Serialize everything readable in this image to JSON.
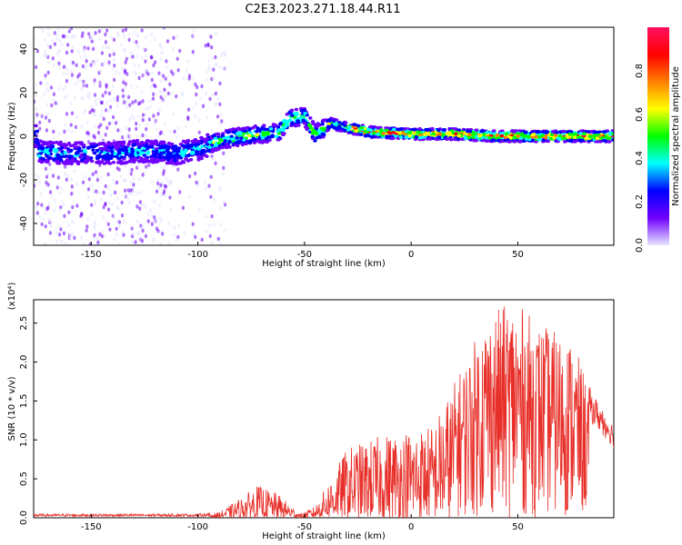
{
  "title": "C2E3.2023.271.18.44.R11",
  "chart_data": [
    {
      "type": "heatmap",
      "xlabel": "Height of straight line (km)",
      "ylabel": "Frequency (Hz)",
      "xlim": [
        -177,
        95
      ],
      "ylim": [
        -50,
        50
      ],
      "xticks": [
        -150,
        -100,
        -50,
        0,
        50
      ],
      "yticks": [
        -40,
        -20,
        0,
        20,
        40
      ],
      "colorbar": {
        "label": "Normalized spectral amplitude",
        "ticks": [
          "0.0",
          "0.2",
          "0.4",
          "0.6",
          "0.8"
        ],
        "range": [
          0,
          1
        ],
        "colormap": [
          "#e6e6ff",
          "#7000ff",
          "#0000ff",
          "#00ffff",
          "#00ff00",
          "#ffff00",
          "#ff8000",
          "#ff0000",
          "#ff1060"
        ]
      },
      "ridge": [
        {
          "x": -175,
          "y": -7
        },
        {
          "x": -160,
          "y": -8
        },
        {
          "x": -150,
          "y": -7
        },
        {
          "x": -140,
          "y": -8
        },
        {
          "x": -130,
          "y": -7
        },
        {
          "x": -120,
          "y": -7
        },
        {
          "x": -110,
          "y": -8
        },
        {
          "x": -100,
          "y": -6
        },
        {
          "x": -90,
          "y": -2
        },
        {
          "x": -80,
          "y": 0
        },
        {
          "x": -70,
          "y": 1
        },
        {
          "x": -62,
          "y": 2
        },
        {
          "x": -57,
          "y": 8
        },
        {
          "x": -50,
          "y": 9
        },
        {
          "x": -45,
          "y": 1
        },
        {
          "x": -38,
          "y": 6
        },
        {
          "x": -30,
          "y": 4
        },
        {
          "x": -20,
          "y": 2
        },
        {
          "x": 0,
          "y": 1
        },
        {
          "x": 20,
          "y": 1
        },
        {
          "x": 40,
          "y": 0
        },
        {
          "x": 60,
          "y": 0
        },
        {
          "x": 80,
          "y": 0
        },
        {
          "x": 95,
          "y": 0
        }
      ]
    },
    {
      "type": "line",
      "xlabel": "Height of straight line (km)",
      "ylabel": "SNR (10 * v/v)",
      "multiplier": "(x10⁴)",
      "xlim": [
        -177,
        95
      ],
      "ylim": [
        0,
        2.8
      ],
      "xticks": [
        -150,
        -100,
        -50,
        0,
        50
      ],
      "yticks": [
        "0.0",
        "0.5",
        "1.0",
        "1.5",
        "2.0",
        "2.5"
      ],
      "series_color": "#e8302a",
      "envelope": [
        {
          "x": -177,
          "y": 0.05
        },
        {
          "x": -100,
          "y": 0.05
        },
        {
          "x": -90,
          "y": 0.07
        },
        {
          "x": -80,
          "y": 0.25
        },
        {
          "x": -72,
          "y": 0.42
        },
        {
          "x": -62,
          "y": 0.3
        },
        {
          "x": -52,
          "y": 0.05
        },
        {
          "x": -45,
          "y": 0.15
        },
        {
          "x": -30,
          "y": 0.9
        },
        {
          "x": -10,
          "y": 1.1
        },
        {
          "x": 10,
          "y": 1.2
        },
        {
          "x": 25,
          "y": 2.0
        },
        {
          "x": 35,
          "y": 2.6
        },
        {
          "x": 48,
          "y": 2.8
        },
        {
          "x": 60,
          "y": 2.5
        },
        {
          "x": 75,
          "y": 2.3
        },
        {
          "x": 85,
          "y": 1.6
        },
        {
          "x": 95,
          "y": 1.2
        }
      ]
    }
  ]
}
